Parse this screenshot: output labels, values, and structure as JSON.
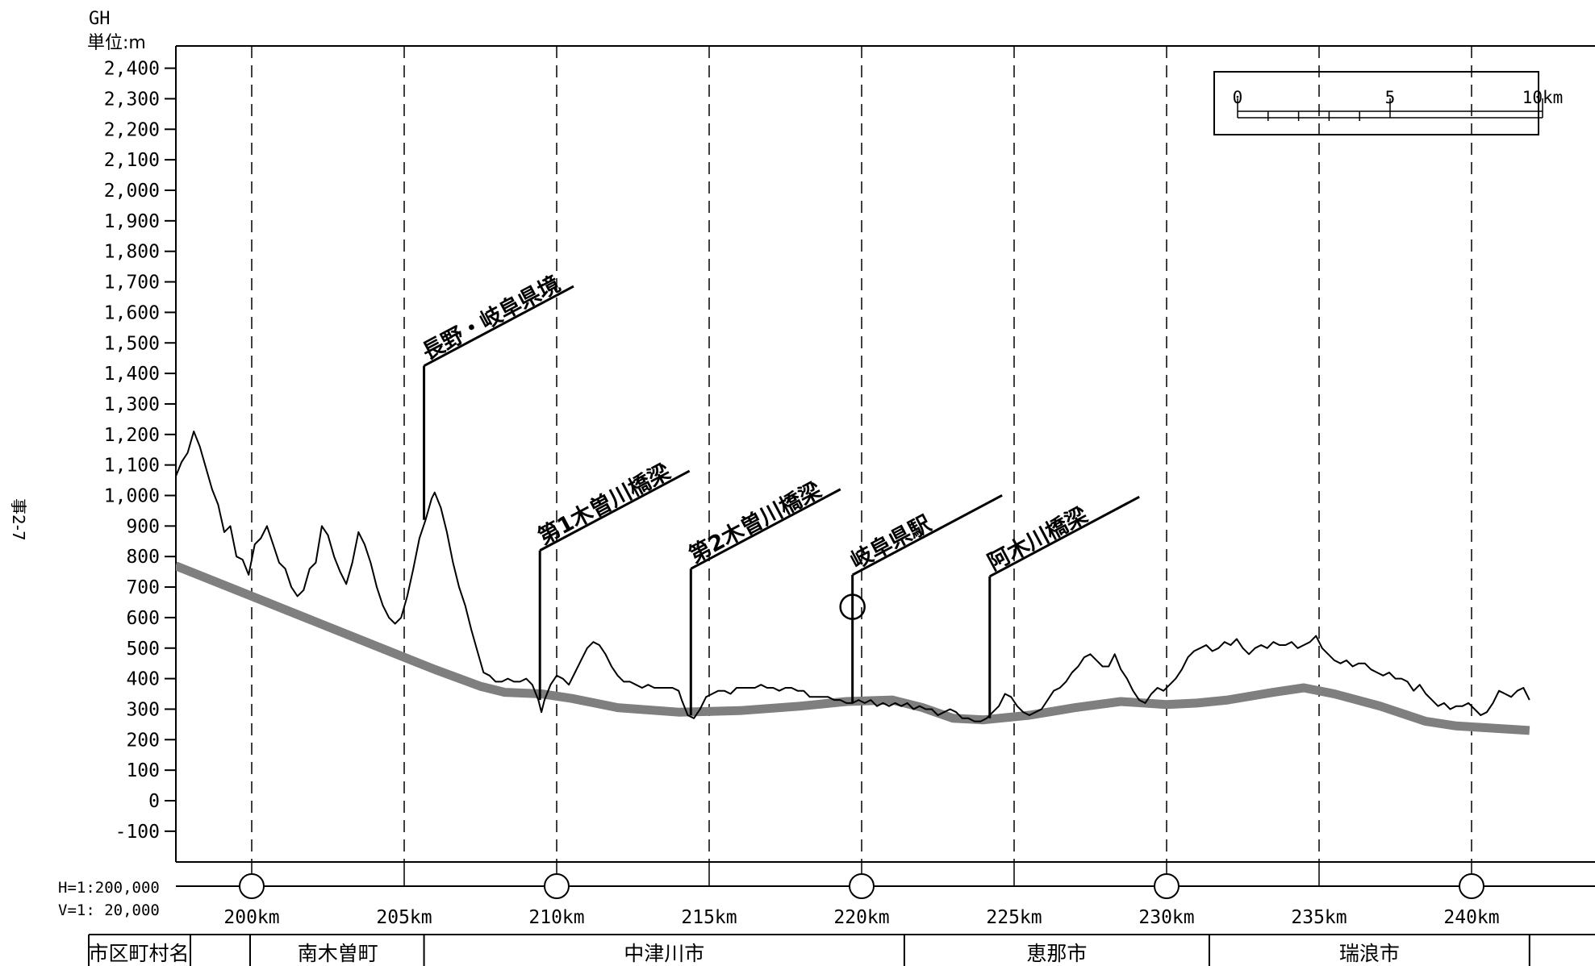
{
  "page_label": "事2-7",
  "chart_data": {
    "type": "line",
    "ylabel_code": "GH",
    "ylabel_unit": "単位:m",
    "yticks": [
      -100,
      0,
      100,
      200,
      300,
      400,
      500,
      600,
      700,
      800,
      900,
      1000,
      1100,
      1200,
      1300,
      1400,
      1500,
      1600,
      1700,
      1800,
      1900,
      2000,
      2100,
      2200,
      2300,
      2400
    ],
    "ytick_labels": [
      "-100",
      "0",
      "100",
      "200",
      "300",
      "400",
      "500",
      "600",
      "700",
      "800",
      "900",
      "1,000",
      "1,100",
      "1,200",
      "1,300",
      "1,400",
      "1,500",
      "1,600",
      "1,700",
      "1,800",
      "1,900",
      "2,000",
      "2,100",
      "2,200",
      "2,300",
      "2,400"
    ],
    "ylim": [
      -200,
      2470
    ],
    "xlim": [
      197.5,
      241.9
    ],
    "xticks": [
      200,
      205,
      210,
      215,
      220,
      225,
      230,
      235,
      240
    ],
    "xtick_labels": [
      "200km",
      "205km",
      "210km",
      "215km",
      "220km",
      "225km",
      "230km",
      "235km",
      "240km"
    ],
    "circle_markers_km": [
      200,
      210,
      220,
      230,
      240
    ],
    "grid": "vertical-dashed",
    "scale_h": "H=1:200,000",
    "scale_v": "V=1: 20,000",
    "series": [
      {
        "key": "ground",
        "color": "#000000",
        "points": [
          [
            197.5,
            1060
          ],
          [
            197.7,
            1110
          ],
          [
            197.9,
            1140
          ],
          [
            198.1,
            1210
          ],
          [
            198.3,
            1160
          ],
          [
            198.5,
            1090
          ],
          [
            198.7,
            1020
          ],
          [
            198.9,
            970
          ],
          [
            199.1,
            880
          ],
          [
            199.3,
            900
          ],
          [
            199.5,
            800
          ],
          [
            199.7,
            790
          ],
          [
            199.9,
            740
          ],
          [
            200.1,
            840
          ],
          [
            200.3,
            860
          ],
          [
            200.5,
            900
          ],
          [
            200.7,
            840
          ],
          [
            200.9,
            780
          ],
          [
            201.1,
            760
          ],
          [
            201.3,
            700
          ],
          [
            201.5,
            670
          ],
          [
            201.7,
            690
          ],
          [
            201.9,
            760
          ],
          [
            202.1,
            780
          ],
          [
            202.3,
            900
          ],
          [
            202.5,
            870
          ],
          [
            202.7,
            800
          ],
          [
            202.9,
            750
          ],
          [
            203.1,
            710
          ],
          [
            203.3,
            780
          ],
          [
            203.5,
            880
          ],
          [
            203.7,
            840
          ],
          [
            203.9,
            780
          ],
          [
            204.1,
            700
          ],
          [
            204.3,
            640
          ],
          [
            204.5,
            600
          ],
          [
            204.7,
            580
          ],
          [
            204.9,
            600
          ],
          [
            205.1,
            670
          ],
          [
            205.3,
            760
          ],
          [
            205.5,
            860
          ],
          [
            205.7,
            920
          ],
          [
            205.9,
            990
          ],
          [
            206.0,
            1010
          ],
          [
            206.2,
            960
          ],
          [
            206.4,
            880
          ],
          [
            206.6,
            780
          ],
          [
            206.8,
            700
          ],
          [
            207.0,
            640
          ],
          [
            207.2,
            560
          ],
          [
            207.4,
            490
          ],
          [
            207.6,
            420
          ],
          [
            207.8,
            410
          ],
          [
            208.0,
            390
          ],
          [
            208.2,
            390
          ],
          [
            208.4,
            400
          ],
          [
            208.6,
            390
          ],
          [
            208.8,
            390
          ],
          [
            209.0,
            400
          ],
          [
            209.2,
            380
          ],
          [
            209.4,
            330
          ],
          [
            209.5,
            290
          ],
          [
            209.6,
            330
          ],
          [
            209.8,
            380
          ],
          [
            210.0,
            410
          ],
          [
            210.2,
            400
          ],
          [
            210.4,
            380
          ],
          [
            210.6,
            420
          ],
          [
            210.8,
            460
          ],
          [
            211.0,
            500
          ],
          [
            211.2,
            520
          ],
          [
            211.4,
            510
          ],
          [
            211.6,
            480
          ],
          [
            211.8,
            440
          ],
          [
            212.0,
            410
          ],
          [
            212.2,
            390
          ],
          [
            212.4,
            390
          ],
          [
            212.6,
            380
          ],
          [
            212.8,
            370
          ],
          [
            213.0,
            380
          ],
          [
            213.2,
            370
          ],
          [
            213.4,
            370
          ],
          [
            213.6,
            370
          ],
          [
            213.8,
            370
          ],
          [
            214.0,
            360
          ],
          [
            214.1,
            330
          ],
          [
            214.3,
            280
          ],
          [
            214.5,
            270
          ],
          [
            214.7,
            300
          ],
          [
            214.9,
            340
          ],
          [
            215.1,
            350
          ],
          [
            215.3,
            360
          ],
          [
            215.5,
            360
          ],
          [
            215.7,
            350
          ],
          [
            215.9,
            370
          ],
          [
            216.1,
            370
          ],
          [
            216.3,
            370
          ],
          [
            216.5,
            370
          ],
          [
            216.7,
            380
          ],
          [
            216.9,
            370
          ],
          [
            217.1,
            370
          ],
          [
            217.3,
            360
          ],
          [
            217.5,
            370
          ],
          [
            217.7,
            370
          ],
          [
            217.9,
            360
          ],
          [
            218.1,
            360
          ],
          [
            218.3,
            340
          ],
          [
            218.5,
            340
          ],
          [
            218.7,
            340
          ],
          [
            218.9,
            340
          ],
          [
            219.1,
            330
          ],
          [
            219.3,
            330
          ],
          [
            219.5,
            320
          ],
          [
            219.7,
            320
          ],
          [
            219.9,
            330
          ],
          [
            220.1,
            320
          ],
          [
            220.3,
            330
          ],
          [
            220.5,
            310
          ],
          [
            220.7,
            320
          ],
          [
            220.9,
            310
          ],
          [
            221.1,
            320
          ],
          [
            221.3,
            310
          ],
          [
            221.5,
            320
          ],
          [
            221.7,
            300
          ],
          [
            221.9,
            310
          ],
          [
            222.1,
            300
          ],
          [
            222.3,
            300
          ],
          [
            222.5,
            280
          ],
          [
            222.7,
            290
          ],
          [
            222.9,
            300
          ],
          [
            223.1,
            290
          ],
          [
            223.3,
            270
          ],
          [
            223.5,
            270
          ],
          [
            223.7,
            260
          ],
          [
            223.9,
            260
          ],
          [
            224.1,
            270
          ],
          [
            224.3,
            290
          ],
          [
            224.5,
            310
          ],
          [
            224.7,
            350
          ],
          [
            224.9,
            340
          ],
          [
            225.1,
            310
          ],
          [
            225.3,
            290
          ],
          [
            225.5,
            280
          ],
          [
            225.7,
            290
          ],
          [
            225.9,
            300
          ],
          [
            226.1,
            330
          ],
          [
            226.3,
            360
          ],
          [
            226.5,
            370
          ],
          [
            226.7,
            390
          ],
          [
            226.9,
            420
          ],
          [
            227.1,
            440
          ],
          [
            227.3,
            470
          ],
          [
            227.5,
            480
          ],
          [
            227.7,
            460
          ],
          [
            227.9,
            440
          ],
          [
            228.1,
            440
          ],
          [
            228.3,
            480
          ],
          [
            228.5,
            430
          ],
          [
            228.7,
            400
          ],
          [
            228.9,
            360
          ],
          [
            229.1,
            330
          ],
          [
            229.3,
            320
          ],
          [
            229.5,
            350
          ],
          [
            229.7,
            370
          ],
          [
            229.9,
            360
          ],
          [
            230.1,
            380
          ],
          [
            230.3,
            400
          ],
          [
            230.5,
            430
          ],
          [
            230.7,
            470
          ],
          [
            230.9,
            490
          ],
          [
            231.1,
            500
          ],
          [
            231.3,
            510
          ],
          [
            231.5,
            490
          ],
          [
            231.7,
            500
          ],
          [
            231.9,
            520
          ],
          [
            232.1,
            510
          ],
          [
            232.3,
            530
          ],
          [
            232.5,
            500
          ],
          [
            232.7,
            480
          ],
          [
            232.9,
            500
          ],
          [
            233.1,
            510
          ],
          [
            233.3,
            500
          ],
          [
            233.5,
            520
          ],
          [
            233.7,
            510
          ],
          [
            233.9,
            510
          ],
          [
            234.1,
            520
          ],
          [
            234.3,
            500
          ],
          [
            234.5,
            510
          ],
          [
            234.7,
            520
          ],
          [
            234.9,
            540
          ],
          [
            235.1,
            500
          ],
          [
            235.3,
            480
          ],
          [
            235.5,
            460
          ],
          [
            235.7,
            450
          ],
          [
            235.9,
            460
          ],
          [
            236.1,
            440
          ],
          [
            236.3,
            450
          ],
          [
            236.5,
            450
          ],
          [
            236.7,
            430
          ],
          [
            236.9,
            420
          ],
          [
            237.1,
            410
          ],
          [
            237.3,
            420
          ],
          [
            237.5,
            400
          ],
          [
            237.7,
            400
          ],
          [
            237.9,
            390
          ],
          [
            238.1,
            360
          ],
          [
            238.3,
            380
          ],
          [
            238.5,
            350
          ],
          [
            238.7,
            330
          ],
          [
            238.9,
            310
          ],
          [
            239.1,
            320
          ],
          [
            239.3,
            300
          ],
          [
            239.5,
            310
          ],
          [
            239.7,
            310
          ],
          [
            239.9,
            320
          ],
          [
            240.1,
            300
          ],
          [
            240.3,
            280
          ],
          [
            240.5,
            290
          ],
          [
            240.7,
            320
          ],
          [
            240.9,
            360
          ],
          [
            241.1,
            350
          ],
          [
            241.3,
            340
          ],
          [
            241.5,
            360
          ],
          [
            241.7,
            370
          ],
          [
            241.9,
            330
          ]
        ]
      },
      {
        "key": "route",
        "color": "#7f7f7f",
        "points": [
          [
            197.5,
            770
          ],
          [
            200,
            670
          ],
          [
            202,
            590
          ],
          [
            204,
            510
          ],
          [
            206,
            430
          ],
          [
            207.5,
            375
          ],
          [
            208.3,
            355
          ],
          [
            209.5,
            350
          ],
          [
            210.5,
            335
          ],
          [
            212,
            305
          ],
          [
            214,
            290
          ],
          [
            216,
            295
          ],
          [
            218,
            310
          ],
          [
            219.5,
            325
          ],
          [
            221,
            330
          ],
          [
            222,
            305
          ],
          [
            223,
            270
          ],
          [
            224,
            265
          ],
          [
            225.5,
            280
          ],
          [
            227,
            305
          ],
          [
            228.5,
            325
          ],
          [
            230,
            315
          ],
          [
            231,
            320
          ],
          [
            232,
            330
          ],
          [
            233.5,
            355
          ],
          [
            234.5,
            370
          ],
          [
            235.5,
            350
          ],
          [
            237,
            310
          ],
          [
            238.5,
            260
          ],
          [
            239.5,
            245
          ],
          [
            241.9,
            230
          ]
        ]
      }
    ],
    "features": [
      {
        "label": "長野・岐阜県境",
        "km": 205.65,
        "top": 1425
      },
      {
        "label": "第1木曽川橋梁",
        "km": 209.45,
        "top": 820
      },
      {
        "label": "第2木曽川橋梁",
        "km": 214.4,
        "top": 760
      },
      {
        "label": "岐阜県駅",
        "km": 219.7,
        "top": 740,
        "circle": 635
      },
      {
        "label": "阿木川橋梁",
        "km": 224.2,
        "top": 735
      }
    ],
    "scale_bar": {
      "labels": [
        "0",
        "5",
        "10km"
      ]
    }
  },
  "table": {
    "header": "市区町村名",
    "cells": [
      {
        "name": "南木曽町",
        "from": 200,
        "to": 205.65
      },
      {
        "name": "中津川市",
        "from": 205.65,
        "to": 221.4
      },
      {
        "name": "恵那市",
        "from": 221.4,
        "to": 231.4
      },
      {
        "name": "瑞浪市",
        "from": 231.4,
        "to": 241.9
      }
    ]
  }
}
